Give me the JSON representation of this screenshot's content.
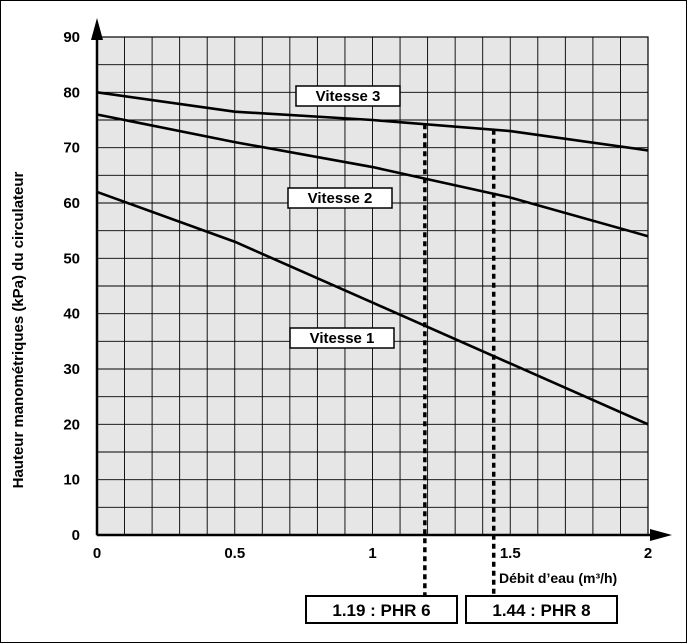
{
  "chart_data": {
    "type": "line",
    "xlabel": "Débit d’eau (m³/h)",
    "ylabel": "Hauteur manométriques (kPa)  du circulateur",
    "xlim": [
      0,
      2
    ],
    "ylim": [
      0,
      90
    ],
    "x_ticks": [
      "0",
      "0.5",
      "1",
      "1.5",
      "2"
    ],
    "y_ticks": [
      "0",
      "10",
      "20",
      "30",
      "40",
      "50",
      "60",
      "70",
      "80",
      "90"
    ],
    "grid": true,
    "grid_color": "#e6e6e6",
    "series": [
      {
        "name": "Vitesse 3",
        "x": [
          0,
          0.5,
          1,
          1.5,
          2
        ],
        "y": [
          80,
          76.5,
          75,
          73,
          69.5
        ]
      },
      {
        "name": "Vitesse 2",
        "x": [
          0,
          0.5,
          1,
          1.5,
          2
        ],
        "y": [
          76,
          71,
          66.5,
          61,
          54
        ]
      },
      {
        "name": "Vitesse 1",
        "x": [
          0,
          0.5,
          1,
          1.5,
          2
        ],
        "y": [
          62,
          53,
          42,
          31,
          20
        ]
      }
    ],
    "markers": [
      {
        "x": 1.19,
        "label": "1.19 : PHR 6"
      },
      {
        "x": 1.44,
        "label": "1.44 : PHR 8"
      }
    ]
  }
}
